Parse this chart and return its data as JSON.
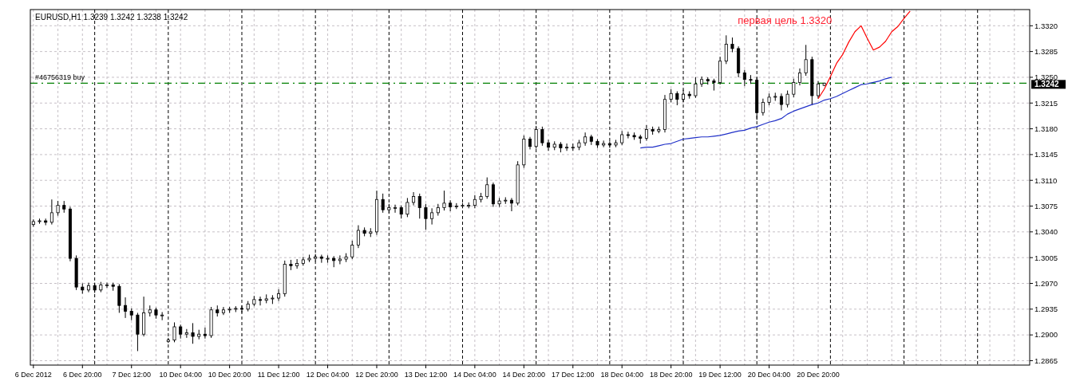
{
  "chart_data": {
    "type": "candlestick",
    "title": "EURUSD,H1  1.3239 1.3242 1.3238 1.3242",
    "color": "#000000",
    "grid": true,
    "categories": [
      "6 Dec 2012",
      null,
      null,
      null,
      null,
      null,
      null,
      null,
      "6 Dec 20:00",
      null,
      null,
      null,
      null,
      null,
      null,
      null,
      "7 Dec 12:00",
      null,
      null,
      null,
      null,
      null,
      null,
      null,
      "10 Dec 04:00",
      null,
      null,
      null,
      null,
      null,
      null,
      null,
      "10 Dec 20:00",
      null,
      null,
      null,
      null,
      null,
      null,
      null,
      "11 Dec 12:00",
      null,
      null,
      null,
      null,
      null,
      null,
      null,
      "12 Dec 04:00",
      null,
      null,
      null,
      null,
      null,
      null,
      null,
      "12 Dec 20:00",
      null,
      null,
      null,
      null,
      null,
      null,
      null,
      "13 Dec 12:00",
      null,
      null,
      null,
      null,
      null,
      null,
      null,
      "14 Dec 04:00",
      null,
      null,
      null,
      null,
      null,
      null,
      null,
      "14 Dec 20:00",
      null,
      null,
      null,
      null,
      null,
      null,
      null,
      "17 Dec 12:00",
      null,
      null,
      null,
      null,
      null,
      null,
      null,
      "18 Dec 04:00",
      null,
      null,
      null,
      null,
      null,
      null,
      null,
      "18 Dec 20:00",
      null,
      null,
      null,
      null,
      null,
      null,
      null,
      "19 Dec 12:00",
      null,
      null,
      null,
      null,
      null,
      null,
      null,
      "20 Dec 04:00",
      null,
      null,
      null,
      null,
      null,
      null,
      null,
      "20 Dec 20:00",
      null,
      null,
      null,
      null,
      null,
      null,
      null,
      null,
      null,
      null,
      null,
      null,
      null,
      null,
      null,
      null,
      null,
      null,
      null,
      null,
      null,
      null,
      null,
      null,
      null,
      null,
      null,
      null,
      null,
      null,
      null,
      null,
      null,
      null
    ],
    "ohlc": [
      [
        1.305,
        1.3057,
        1.3047,
        1.3054
      ],
      [
        1.3054,
        1.3058,
        1.3051,
        1.3055
      ],
      [
        1.3055,
        1.3058,
        1.3049,
        1.3053
      ],
      [
        1.3053,
        1.3084,
        1.305,
        1.3066
      ],
      [
        1.3066,
        1.3082,
        1.3062,
        1.3076
      ],
      [
        1.3076,
        1.3082,
        1.3066,
        1.3071
      ],
      [
        1.3071,
        1.3074,
        1.3,
        1.3004
      ],
      [
        1.3004,
        1.3008,
        1.2961,
        1.2965
      ],
      [
        1.2965,
        1.297,
        1.2956,
        1.2961
      ],
      [
        1.2961,
        1.2971,
        1.2958,
        1.2967
      ],
      [
        1.2967,
        1.2971,
        1.2957,
        1.2961
      ],
      [
        1.2961,
        1.2972,
        1.2958,
        1.2968
      ],
      [
        1.2968,
        1.2971,
        1.2964,
        1.2968
      ],
      [
        1.2968,
        1.2971,
        1.296,
        1.2966
      ],
      [
        1.2966,
        1.2969,
        1.293,
        1.294
      ],
      [
        1.294,
        1.2951,
        1.2923,
        1.2932
      ],
      [
        1.2932,
        1.2936,
        1.292,
        1.2927
      ],
      [
        1.2927,
        1.293,
        1.2878,
        1.2901
      ],
      [
        1.2901,
        1.2952,
        1.2898,
        1.293
      ],
      [
        1.293,
        1.294,
        1.2925,
        1.2934
      ],
      [
        1.2934,
        1.2937,
        1.2922,
        1.2927
      ],
      [
        1.2927,
        1.2931,
        1.292,
        1.2927
      ],
      [
        1.2891,
        1.2896,
        1.2889,
        1.2893
      ],
      [
        1.2893,
        1.2917,
        1.289,
        1.2911
      ],
      [
        1.2911,
        1.2914,
        1.2895,
        1.2901
      ],
      [
        1.2901,
        1.2908,
        1.2896,
        1.2903
      ],
      [
        1.2903,
        1.2916,
        1.2888,
        1.2898
      ],
      [
        1.2898,
        1.2907,
        1.2894,
        1.2901
      ],
      [
        1.2901,
        1.291,
        1.2895,
        1.2899
      ],
      [
        1.2899,
        1.2938,
        1.2896,
        1.2934
      ],
      [
        1.2934,
        1.294,
        1.2925,
        1.293
      ],
      [
        1.293,
        1.2938,
        1.2927,
        1.2934
      ],
      [
        1.2934,
        1.2938,
        1.293,
        1.2935
      ],
      [
        1.2935,
        1.2939,
        1.2931,
        1.2936
      ],
      [
        1.2936,
        1.294,
        1.293,
        1.2935
      ],
      [
        1.2935,
        1.2946,
        1.2932,
        1.2942
      ],
      [
        1.2942,
        1.2953,
        1.2939,
        1.2948
      ],
      [
        1.2948,
        1.2952,
        1.294,
        1.2947
      ],
      [
        1.2947,
        1.2955,
        1.2943,
        1.2949
      ],
      [
        1.2949,
        1.2954,
        1.2942,
        1.295
      ],
      [
        1.295,
        1.2962,
        1.2946,
        1.2956
      ],
      [
        1.2956,
        1.3001,
        1.2952,
        1.2996
      ],
      [
        1.2996,
        1.3002,
        1.2988,
        1.2994
      ],
      [
        1.2994,
        1.3003,
        1.299,
        1.2997
      ],
      [
        1.2997,
        1.3006,
        1.2994,
        1.3002
      ],
      [
        1.3002,
        1.3009,
        1.2999,
        1.3004
      ],
      [
        1.3004,
        1.301,
        1.3,
        1.3006
      ],
      [
        1.3006,
        1.3009,
        1.2998,
        1.3004
      ],
      [
        1.3004,
        1.3008,
        1.2998,
        1.3004
      ],
      [
        1.3004,
        1.3007,
        1.2992,
        1.3001
      ],
      [
        1.3001,
        1.3008,
        1.2996,
        1.3003
      ],
      [
        1.3003,
        1.3011,
        1.2999,
        1.3006
      ],
      [
        1.3006,
        1.3028,
        1.3003,
        1.3022
      ],
      [
        1.3022,
        1.3049,
        1.3018,
        1.3042
      ],
      [
        1.3042,
        1.3046,
        1.3034,
        1.3038
      ],
      [
        1.3038,
        1.3045,
        1.3033,
        1.304
      ],
      [
        1.304,
        1.3096,
        1.3036,
        1.3084
      ],
      [
        1.3084,
        1.3092,
        1.3066,
        1.307
      ],
      [
        1.307,
        1.3078,
        1.3065,
        1.3073
      ],
      [
        1.3073,
        1.3077,
        1.3066,
        1.3073
      ],
      [
        1.3073,
        1.3076,
        1.3058,
        1.3064
      ],
      [
        1.3064,
        1.3086,
        1.306,
        1.308
      ],
      [
        1.308,
        1.3094,
        1.3076,
        1.3088
      ],
      [
        1.3088,
        1.3092,
        1.3058,
        1.3073
      ],
      [
        1.3073,
        1.3078,
        1.3043,
        1.3058
      ],
      [
        1.3058,
        1.3072,
        1.305,
        1.3066
      ],
      [
        1.3066,
        1.3078,
        1.3062,
        1.3073
      ],
      [
        1.3073,
        1.3096,
        1.3069,
        1.3079
      ],
      [
        1.3079,
        1.3083,
        1.3068,
        1.3074
      ],
      [
        1.3074,
        1.3079,
        1.3071,
        1.3075
      ],
      [
        1.3075,
        1.3079,
        1.3072,
        1.3076
      ],
      [
        1.3076,
        1.308,
        1.3072,
        1.3076
      ],
      [
        1.3076,
        1.309,
        1.3072,
        1.3084
      ],
      [
        1.3084,
        1.3093,
        1.308,
        1.3088
      ],
      [
        1.3088,
        1.3114,
        1.3085,
        1.3104
      ],
      [
        1.3104,
        1.3107,
        1.3074,
        1.3078
      ],
      [
        1.3078,
        1.3086,
        1.3074,
        1.3082
      ],
      [
        1.3082,
        1.3087,
        1.3078,
        1.3083
      ],
      [
        1.3083,
        1.3086,
        1.3068,
        1.3079
      ],
      [
        1.3079,
        1.3136,
        1.3076,
        1.3131
      ],
      [
        1.3131,
        1.3171,
        1.3127,
        1.3166
      ],
      [
        1.3166,
        1.3169,
        1.3152,
        1.3156
      ],
      [
        1.3156,
        1.3184,
        1.3153,
        1.3179
      ],
      [
        1.3179,
        1.3183,
        1.3157,
        1.3161
      ],
      [
        1.3161,
        1.3165,
        1.315,
        1.3155
      ],
      [
        1.3155,
        1.3163,
        1.3151,
        1.3159
      ],
      [
        1.3159,
        1.3162,
        1.3148,
        1.3154
      ],
      [
        1.3154,
        1.316,
        1.315,
        1.3155
      ],
      [
        1.3155,
        1.316,
        1.315,
        1.3155
      ],
      [
        1.3155,
        1.3165,
        1.3151,
        1.3161
      ],
      [
        1.3161,
        1.3175,
        1.3157,
        1.3169
      ],
      [
        1.3169,
        1.3172,
        1.3158,
        1.3163
      ],
      [
        1.3163,
        1.3166,
        1.3154,
        1.3158
      ],
      [
        1.3158,
        1.3164,
        1.3155,
        1.316
      ],
      [
        1.316,
        1.3163,
        1.3154,
        1.3158
      ],
      [
        1.3158,
        1.3165,
        1.3155,
        1.3161
      ],
      [
        1.3161,
        1.3177,
        1.3158,
        1.3172
      ],
      [
        1.3172,
        1.3176,
        1.3167,
        1.3171
      ],
      [
        1.3171,
        1.3175,
        1.3165,
        1.3169
      ],
      [
        1.3169,
        1.3172,
        1.316,
        1.3167
      ],
      [
        1.3167,
        1.3185,
        1.3164,
        1.3179
      ],
      [
        1.3179,
        1.3183,
        1.3172,
        1.3177
      ],
      [
        1.3177,
        1.3183,
        1.3174,
        1.3179
      ],
      [
        1.3179,
        1.3226,
        1.3175,
        1.322
      ],
      [
        1.322,
        1.3234,
        1.3216,
        1.3228
      ],
      [
        1.3228,
        1.3231,
        1.3212,
        1.322
      ],
      [
        1.322,
        1.3233,
        1.3216,
        1.3227
      ],
      [
        1.3227,
        1.3231,
        1.3221,
        1.3225
      ],
      [
        1.3225,
        1.325,
        1.3222,
        1.3241
      ],
      [
        1.3241,
        1.3251,
        1.3237,
        1.3247
      ],
      [
        1.3247,
        1.325,
        1.324,
        1.3245
      ],
      [
        1.3245,
        1.3248,
        1.3232,
        1.3243
      ],
      [
        1.3243,
        1.3278,
        1.324,
        1.3272
      ],
      [
        1.3272,
        1.3307,
        1.3268,
        1.3295
      ],
      [
        1.3295,
        1.3304,
        1.3284,
        1.3289
      ],
      [
        1.3289,
        1.3292,
        1.325,
        1.3256
      ],
      [
        1.3256,
        1.326,
        1.3238,
        1.3247
      ],
      [
        1.3247,
        1.3253,
        1.3241,
        1.3246
      ],
      [
        1.3246,
        1.325,
        1.3192,
        1.3202
      ],
      [
        1.3202,
        1.3221,
        1.3198,
        1.3216
      ],
      [
        1.3216,
        1.3228,
        1.3212,
        1.3223
      ],
      [
        1.3223,
        1.3229,
        1.3218,
        1.3224
      ],
      [
        1.3224,
        1.3228,
        1.3205,
        1.3213
      ],
      [
        1.3213,
        1.3232,
        1.3209,
        1.3227
      ],
      [
        1.3227,
        1.3248,
        1.3223,
        1.3243
      ],
      [
        1.3243,
        1.3262,
        1.3239,
        1.3256
      ],
      [
        1.3256,
        1.3294,
        1.3252,
        1.3274
      ],
      [
        1.3274,
        1.3278,
        1.3212,
        1.3225
      ],
      [
        1.3225,
        1.3245,
        1.3221,
        1.3241
      ],
      [
        1.3239,
        1.3242,
        1.3238,
        1.3242
      ],
      null,
      null,
      null,
      null,
      null,
      null,
      null,
      null,
      null,
      null,
      null,
      null,
      null,
      null,
      null,
      null,
      null,
      null,
      null,
      null,
      null,
      null,
      null,
      null,
      null,
      null,
      null,
      null,
      null,
      null,
      null,
      null,
      null
    ],
    "series": [
      {
        "type": "line",
        "color": "#ff0000",
        "values": [
          null,
          null,
          null,
          null,
          null,
          null,
          null,
          null,
          null,
          null,
          null,
          null,
          null,
          null,
          null,
          null,
          null,
          null,
          null,
          null,
          null,
          null,
          null,
          null,
          null,
          null,
          null,
          null,
          null,
          null,
          null,
          null,
          null,
          null,
          null,
          null,
          null,
          null,
          null,
          null,
          null,
          null,
          null,
          null,
          null,
          null,
          null,
          null,
          null,
          null,
          null,
          null,
          null,
          null,
          null,
          null,
          null,
          null,
          null,
          null,
          null,
          null,
          null,
          null,
          null,
          null,
          null,
          null,
          null,
          null,
          null,
          null,
          null,
          null,
          null,
          null,
          null,
          null,
          null,
          null,
          null,
          null,
          null,
          null,
          null,
          null,
          null,
          null,
          null,
          null,
          null,
          null,
          null,
          null,
          null,
          null,
          null,
          null,
          null,
          null,
          null,
          null,
          null,
          null,
          null,
          null,
          null,
          null,
          null,
          null,
          null,
          null,
          null,
          null,
          null,
          null,
          null,
          null,
          null,
          null,
          null,
          null,
          null,
          null,
          null,
          null,
          null,
          null,
          1.3221,
          1.3234,
          1.3251,
          1.3269,
          1.3281,
          1.3298,
          1.3312,
          1.332,
          1.3303,
          1.3287,
          1.3291,
          1.3299,
          1.3312,
          1.3319,
          1.333,
          1.334,
          null,
          null,
          null,
          null,
          null,
          null,
          null,
          null,
          null,
          null,
          null,
          null,
          null,
          null,
          null,
          null,
          null,
          null,
          null
        ]
      },
      {
        "type": "line",
        "color": "#2030c8",
        "values": [
          null,
          null,
          null,
          null,
          null,
          null,
          null,
          null,
          null,
          null,
          null,
          null,
          null,
          null,
          null,
          null,
          null,
          null,
          null,
          null,
          null,
          null,
          null,
          null,
          null,
          null,
          null,
          null,
          null,
          null,
          null,
          null,
          null,
          null,
          null,
          null,
          null,
          null,
          null,
          null,
          null,
          null,
          null,
          null,
          null,
          null,
          null,
          null,
          null,
          null,
          null,
          null,
          null,
          null,
          null,
          null,
          null,
          null,
          null,
          null,
          null,
          null,
          null,
          null,
          null,
          null,
          null,
          null,
          null,
          null,
          null,
          null,
          null,
          null,
          null,
          null,
          null,
          null,
          null,
          null,
          null,
          null,
          null,
          null,
          null,
          null,
          null,
          null,
          null,
          null,
          null,
          null,
          null,
          null,
          null,
          null,
          null,
          null,
          null,
          1.3154,
          1.3155,
          1.3155,
          1.3157,
          1.3159,
          1.316,
          1.3163,
          1.3166,
          1.3167,
          1.3168,
          1.3169,
          1.3169,
          1.317,
          1.3171,
          1.3173,
          1.3175,
          1.3177,
          1.3178,
          1.3181,
          1.3183,
          1.3186,
          1.3189,
          1.3191,
          1.3194,
          1.32,
          1.3204,
          1.3207,
          1.321,
          1.3213,
          1.3215,
          1.3219,
          1.3221,
          1.3224,
          1.3228,
          1.3232,
          1.3236,
          1.324,
          1.3241,
          1.3243,
          1.3245,
          1.3248,
          1.325,
          null,
          null,
          null,
          null,
          null,
          null,
          null,
          null,
          null,
          null,
          null,
          null,
          null,
          null,
          null,
          null,
          null,
          null,
          null,
          null,
          null,
          null
        ]
      }
    ],
    "ylim": [
      1.2859,
      1.3342
    ],
    "yticks": [
      {
        "value": 1.2865,
        "label": "1.2865"
      },
      {
        "value": 1.29,
        "label": "1.2900"
      },
      {
        "value": 1.2935,
        "label": "1.2935"
      },
      {
        "value": 1.297,
        "label": "1.2970"
      },
      {
        "value": 1.3005,
        "label": "1.3005"
      },
      {
        "value": 1.304,
        "label": "1.3040"
      },
      {
        "value": 1.3075,
        "label": "1.3075"
      },
      {
        "value": 1.311,
        "label": "1.3110"
      },
      {
        "value": 1.3145,
        "label": "1.3145"
      },
      {
        "value": 1.318,
        "label": "1.3180"
      },
      {
        "value": 1.3215,
        "label": "1.3215"
      },
      {
        "value": 1.325,
        "label": "1.3250"
      },
      {
        "value": 1.3285,
        "label": "1.3285"
      },
      {
        "value": 1.332,
        "label": "1.3320"
      }
    ],
    "ref_lines": [
      {
        "axis": "y",
        "value": 1.3242,
        "label": "#46756319 buy",
        "color": "#008000",
        "line_style": "dashed"
      }
    ],
    "annotations": [
      "первая цель 1.3320",
      "1.3242"
    ]
  }
}
